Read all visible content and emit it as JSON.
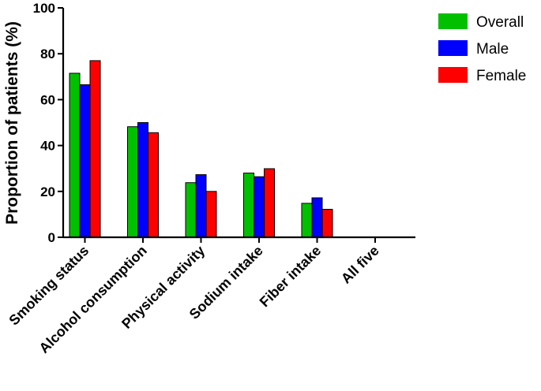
{
  "chart_data": {
    "type": "bar",
    "title": "",
    "xlabel": "",
    "ylabel": "Proportion of patients (%)",
    "ylim": [
      0,
      100
    ],
    "yticks": [
      0,
      20,
      40,
      60,
      80,
      100
    ],
    "categories": [
      "Smoking status",
      "Alcohol consumption",
      "Physical activity",
      "Sodium intake",
      "Fiber intake",
      "All five"
    ],
    "series": [
      {
        "name": "Overall",
        "color": "#00c000",
        "values": [
          71.5,
          48.2,
          23.8,
          28.0,
          14.8,
          0
        ]
      },
      {
        "name": "Male",
        "color": "#0000ff",
        "values": [
          66.5,
          50.0,
          27.3,
          26.4,
          17.2,
          0
        ]
      },
      {
        "name": "Female",
        "color": "#ff0000",
        "values": [
          77.0,
          45.6,
          20.0,
          29.9,
          12.2,
          0
        ]
      }
    ],
    "legend_position": "top-right",
    "grid": false
  }
}
